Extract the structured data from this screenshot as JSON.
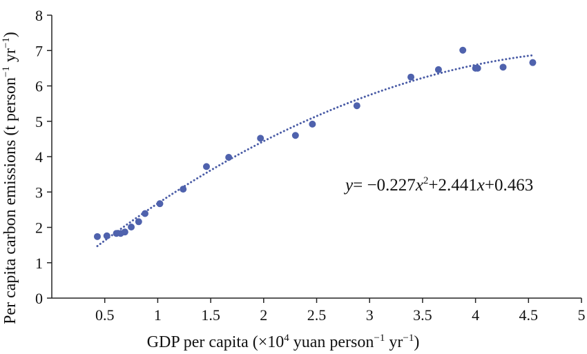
{
  "chart_data": {
    "type": "scatter",
    "xlabel": {
      "prefix": "GDP per capita (×10",
      "exp1": "4",
      "mid": " yuan person",
      "exp2": "−1",
      "mid2": " yr",
      "exp3": "−1",
      "suffix": ")"
    },
    "ylabel": {
      "prefix": "Per capita carbon emissions (t person",
      "exp1": "−1",
      "mid": " yr",
      "exp2": "−1",
      "suffix": ")"
    },
    "xlim": [
      0,
      5
    ],
    "ylim": [
      0,
      8
    ],
    "x_ticks": [
      "0.5",
      "1",
      "1.5",
      "2",
      "2.5",
      "3",
      "3.5",
      "4",
      "4.5",
      "5"
    ],
    "x_tick_values": [
      0.5,
      1,
      1.5,
      2,
      2.5,
      3,
      3.5,
      4,
      4.5,
      5
    ],
    "y_ticks": [
      "0",
      "1",
      "2",
      "3",
      "4",
      "5",
      "6",
      "7",
      "8"
    ],
    "y_tick_values": [
      0,
      1,
      2,
      3,
      4,
      5,
      6,
      7,
      8
    ],
    "grid": false,
    "marker_color": "#4f62ad",
    "trendline_color": "#4a5ca6",
    "points": [
      {
        "x": 0.43,
        "y": 1.74
      },
      {
        "x": 0.52,
        "y": 1.76
      },
      {
        "x": 0.61,
        "y": 1.83
      },
      {
        "x": 0.65,
        "y": 1.83
      },
      {
        "x": 0.69,
        "y": 1.87
      },
      {
        "x": 0.75,
        "y": 2.01
      },
      {
        "x": 0.82,
        "y": 2.16
      },
      {
        "x": 0.88,
        "y": 2.39
      },
      {
        "x": 1.02,
        "y": 2.67
      },
      {
        "x": 1.24,
        "y": 3.08
      },
      {
        "x": 1.46,
        "y": 3.72
      },
      {
        "x": 1.67,
        "y": 3.98
      },
      {
        "x": 1.97,
        "y": 4.52
      },
      {
        "x": 2.3,
        "y": 4.6
      },
      {
        "x": 2.46,
        "y": 4.92
      },
      {
        "x": 2.88,
        "y": 5.44
      },
      {
        "x": 3.39,
        "y": 6.25
      },
      {
        "x": 3.65,
        "y": 6.46
      },
      {
        "x": 3.88,
        "y": 7.01
      },
      {
        "x": 4.0,
        "y": 6.5
      },
      {
        "x": 4.02,
        "y": 6.5
      },
      {
        "x": 4.26,
        "y": 6.53
      },
      {
        "x": 4.54,
        "y": 6.66
      }
    ],
    "trendline": {
      "type": "polynomial",
      "coefficients": {
        "a": -0.227,
        "b": 2.441,
        "c": 0.463
      },
      "x_range": [
        0.43,
        4.54
      ]
    },
    "annotation": {
      "y": "y",
      "eq1": "= −0.227",
      "x1": "x",
      "sq": "2",
      "plus1": "+2.441",
      "x2": "x",
      "rest": "+0.463"
    }
  }
}
